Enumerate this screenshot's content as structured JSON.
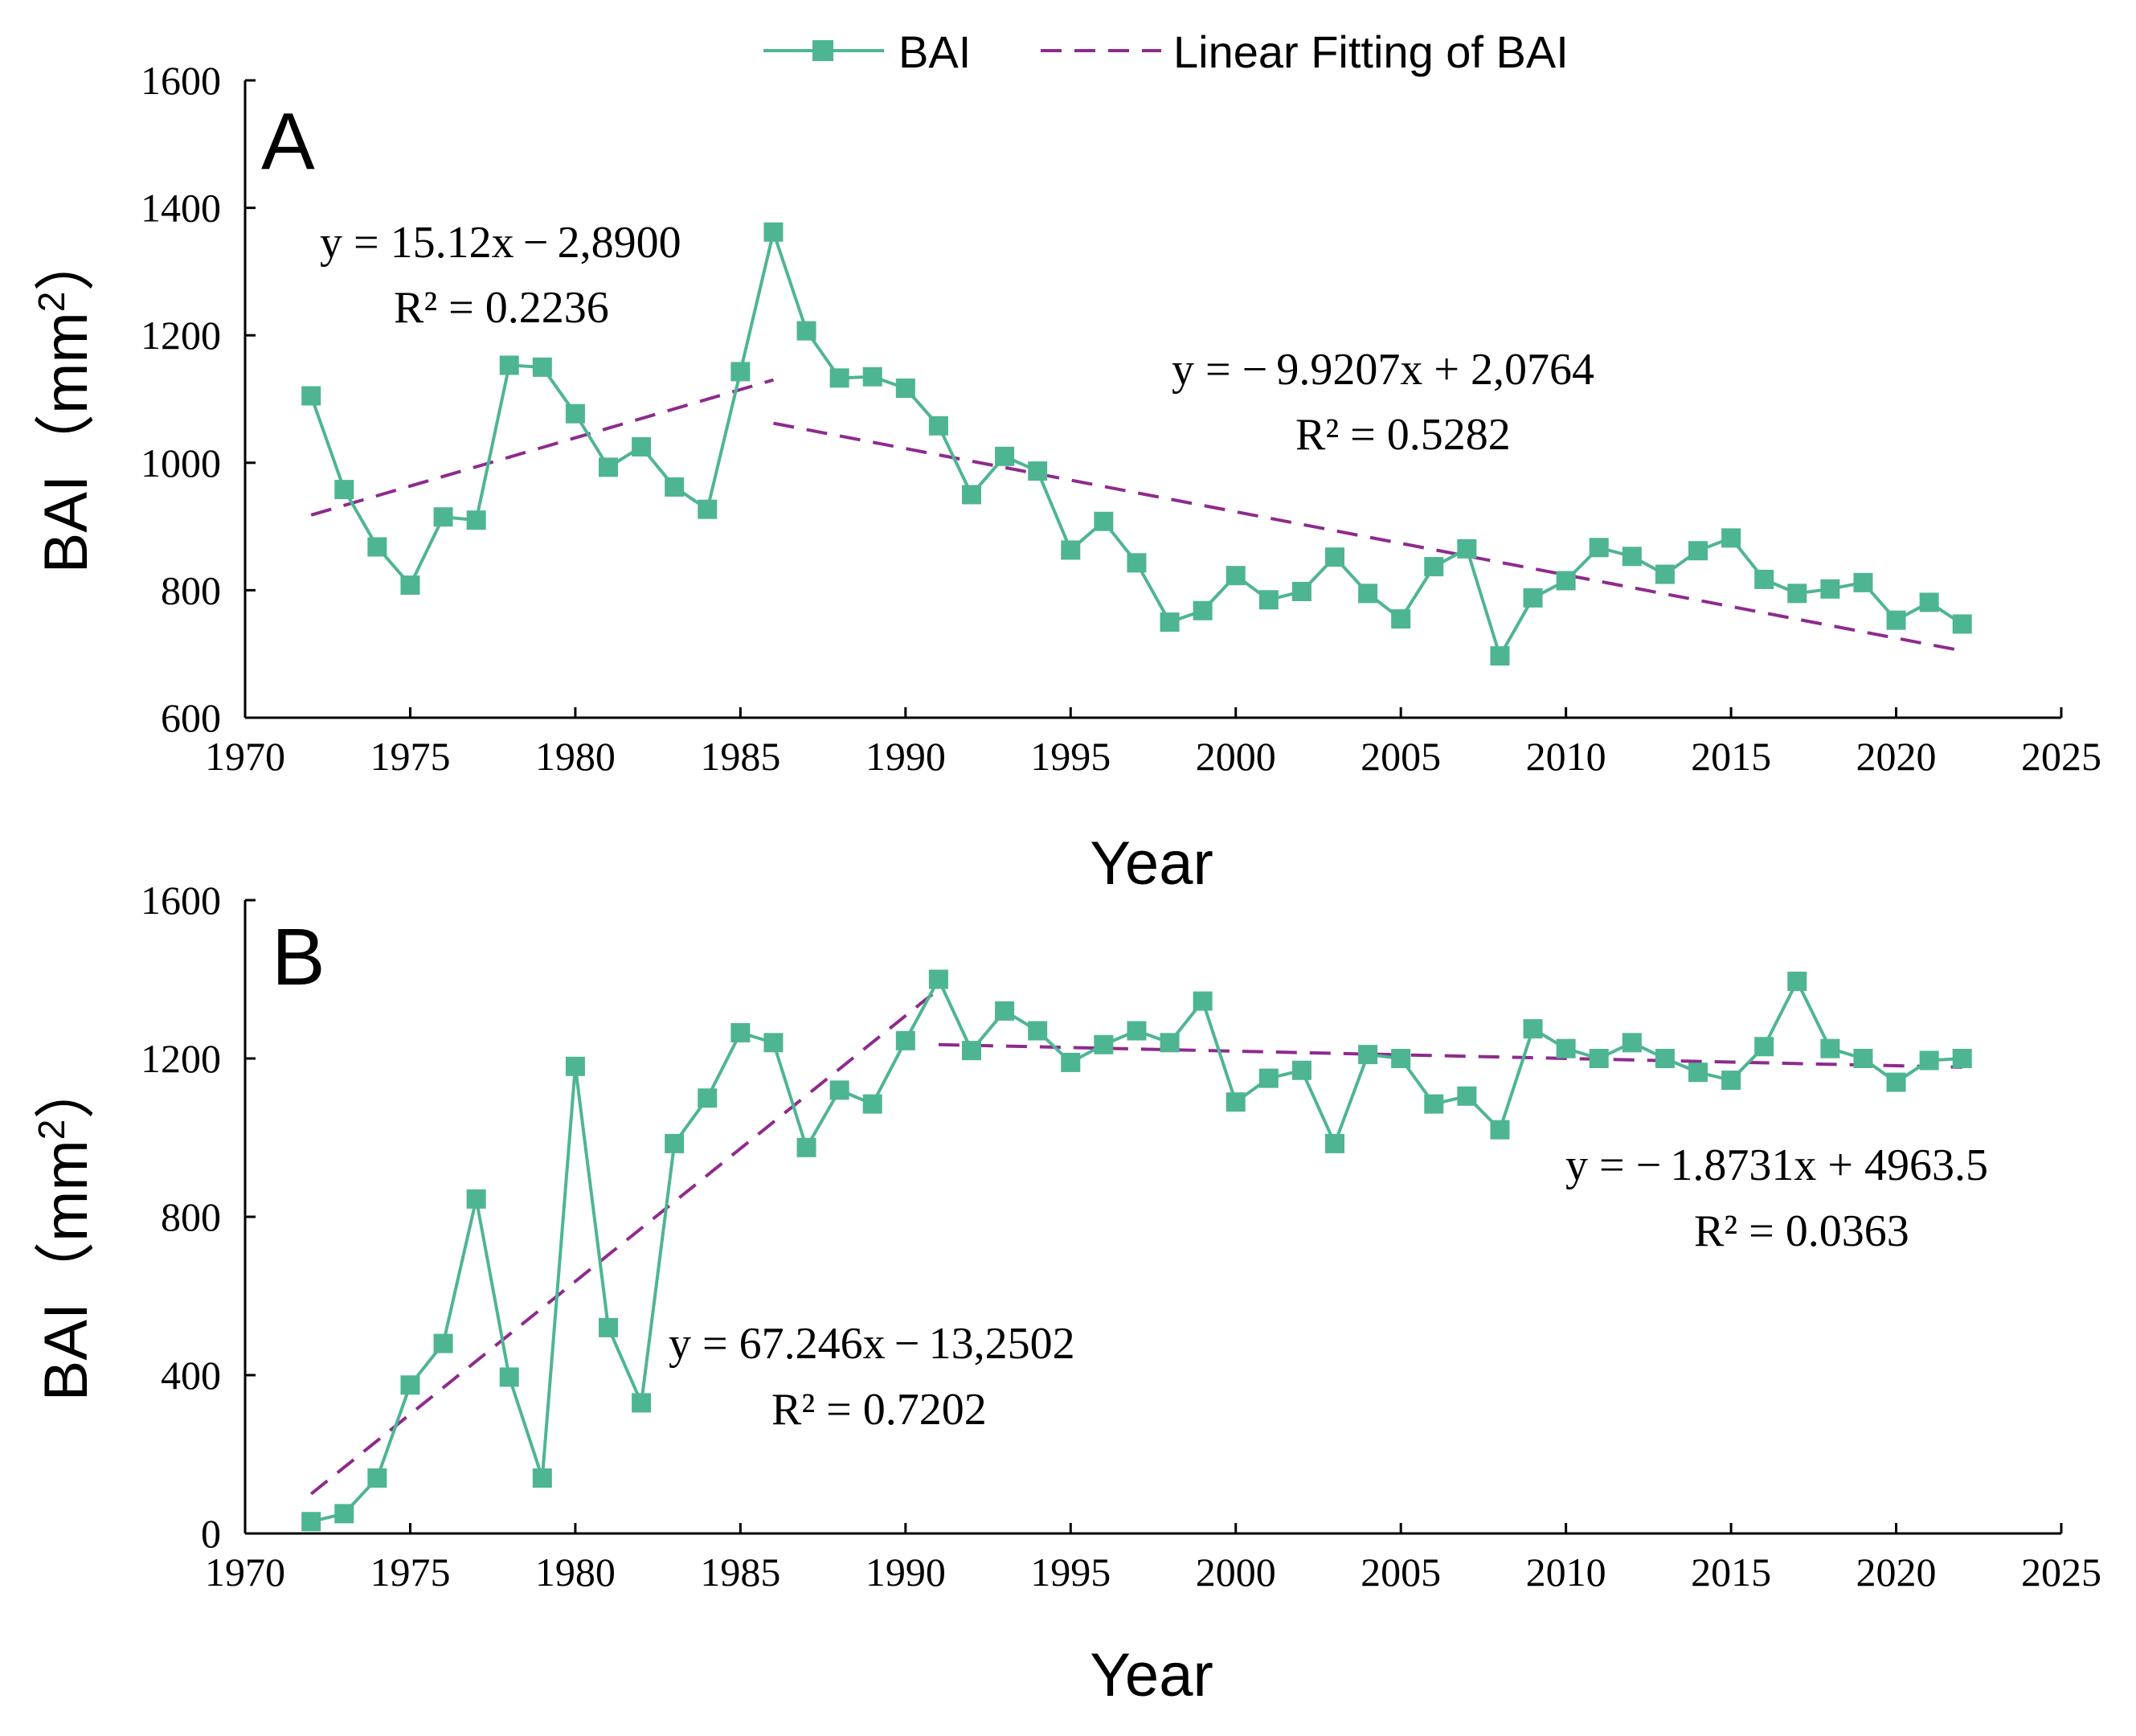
{
  "legend": {
    "series_label": "BAI",
    "fit_label": "Linear Fitting of BAI"
  },
  "colors": {
    "series": "#4eb592",
    "fit": "#8e2a8e",
    "axis": "#000000"
  },
  "chart_data": [
    {
      "type": "line",
      "panel": "A",
      "xlabel": "Year",
      "ylabel": "BAI（mm²）",
      "ylabel_main": "BAI（mm",
      "ylabel_sup": "2",
      "ylabel_close": "）",
      "xlim": [
        1970,
        2025
      ],
      "ylim": [
        600,
        1600
      ],
      "xticks": [
        1970,
        1975,
        1980,
        1985,
        1990,
        1995,
        2000,
        2005,
        2010,
        2015,
        2020,
        2025
      ],
      "yticks": [
        600,
        800,
        1000,
        1200,
        1400,
        1600
      ],
      "series": [
        {
          "name": "BAI",
          "x": [
            1972,
            1973,
            1974,
            1975,
            1976,
            1977,
            1978,
            1979,
            1980,
            1981,
            1982,
            1983,
            1984,
            1985,
            1986,
            1987,
            1988,
            1989,
            1990,
            1991,
            1992,
            1993,
            1994,
            1995,
            1996,
            1997,
            1998,
            1999,
            2000,
            2001,
            2002,
            2003,
            2004,
            2005,
            2006,
            2007,
            2008,
            2009,
            2010,
            2011,
            2012,
            2013,
            2014,
            2015,
            2016,
            2017,
            2018,
            2019,
            2020,
            2021,
            2022
          ],
          "values": [
            1105,
            958,
            868,
            808,
            915,
            910,
            1153,
            1150,
            1077,
            993,
            1025,
            962,
            927,
            1143,
            1362,
            1207,
            1133,
            1135,
            1117,
            1058,
            950,
            1010,
            987,
            863,
            908,
            843,
            750,
            768,
            823,
            785,
            798,
            852,
            795,
            755,
            837,
            865,
            697,
            788,
            815,
            867,
            853,
            825,
            862,
            882,
            817,
            795,
            802,
            812,
            753,
            781,
            747
          ]
        }
      ],
      "fits": [
        {
          "x": [
            1972,
            1986
          ],
          "values": [
            918,
            1130
          ],
          "equation": "y = 15.12x − 2,8900",
          "r2": "R² = 0.2236"
        },
        {
          "x": [
            1986,
            2022
          ],
          "values": [
            1062,
            705
          ],
          "equation": "y = − 9.9207x + 2,0764",
          "r2": "R² = 0.5282"
        }
      ]
    },
    {
      "type": "line",
      "panel": "B",
      "xlabel": "Year",
      "ylabel": "BAI（mm²）",
      "ylabel_main": "BAI（mm",
      "ylabel_sup": "2",
      "ylabel_close": "）",
      "xlim": [
        1970,
        2025
      ],
      "ylim": [
        0,
        1600
      ],
      "xticks": [
        1970,
        1975,
        1980,
        1985,
        1990,
        1995,
        2000,
        2005,
        2010,
        2015,
        2020,
        2025
      ],
      "yticks": [
        0,
        400,
        800,
        1200,
        1600
      ],
      "series": [
        {
          "name": "BAI",
          "x": [
            1972,
            1973,
            1974,
            1975,
            1976,
            1977,
            1978,
            1979,
            1980,
            1981,
            1982,
            1983,
            1984,
            1985,
            1986,
            1987,
            1988,
            1989,
            1990,
            1991,
            1992,
            1993,
            1994,
            1995,
            1996,
            1997,
            1998,
            1999,
            2000,
            2001,
            2002,
            2003,
            2004,
            2005,
            2006,
            2007,
            2008,
            2009,
            2010,
            2011,
            2012,
            2013,
            2014,
            2015,
            2016,
            2017,
            2018,
            2019,
            2020,
            2021,
            2022
          ],
          "values": [
            30,
            50,
            140,
            375,
            480,
            845,
            395,
            140,
            1180,
            520,
            330,
            985,
            1100,
            1265,
            1240,
            975,
            1120,
            1085,
            1245,
            1400,
            1220,
            1320,
            1270,
            1190,
            1235,
            1270,
            1240,
            1345,
            1090,
            1150,
            1170,
            985,
            1210,
            1200,
            1085,
            1105,
            1020,
            1275,
            1225,
            1200,
            1240,
            1200,
            1165,
            1145,
            1230,
            1395,
            1225,
            1200,
            1140,
            1195,
            1200
          ]
        }
      ],
      "fits": [
        {
          "x": [
            1972,
            1991
          ],
          "values": [
            100,
            1375
          ],
          "equation": "y = 67.246x − 13,2502",
          "r2": "R² = 0.7202"
        },
        {
          "x": [
            1991,
            2022
          ],
          "values": [
            1235,
            1178
          ],
          "equation": "y = − 1.8731x + 4963.5",
          "r2": "R² = 0.0363"
        }
      ]
    }
  ]
}
